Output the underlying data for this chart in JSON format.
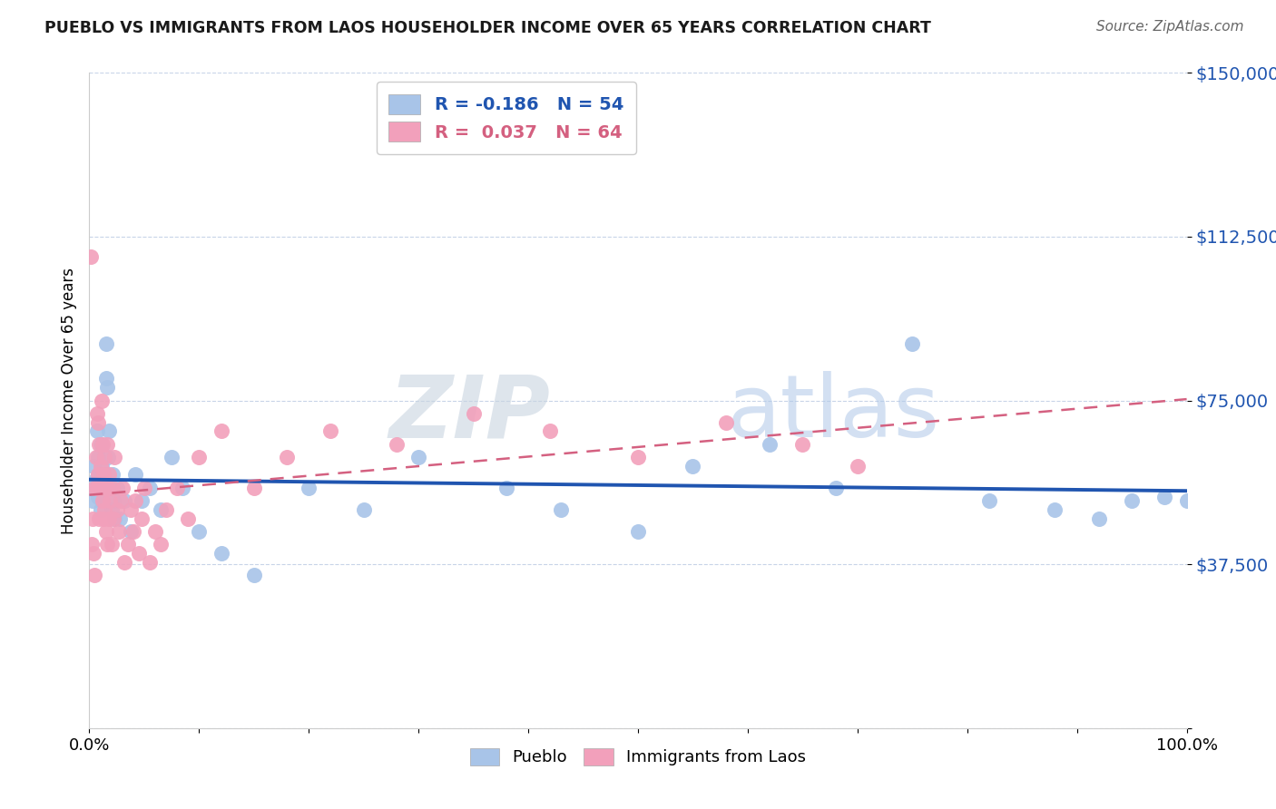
{
  "title": "PUEBLO VS IMMIGRANTS FROM LAOS HOUSEHOLDER INCOME OVER 65 YEARS CORRELATION CHART",
  "source": "Source: ZipAtlas.com",
  "ylabel": "Householder Income Over 65 years",
  "xmin": 0.0,
  "xmax": 1.0,
  "ymin": 0,
  "ymax": 150000,
  "pueblo_R": -0.186,
  "pueblo_N": 54,
  "laos_R": 0.037,
  "laos_N": 64,
  "pueblo_color": "#a8c4e8",
  "laos_color": "#f2a0bb",
  "pueblo_line_color": "#2055b0",
  "laos_line_color": "#d46080",
  "background_color": "#ffffff",
  "grid_color": "#c8d4e8",
  "watermark_zip": "ZIP",
  "watermark_atlas": "atlas",
  "pueblo_x": [
    0.003,
    0.004,
    0.005,
    0.006,
    0.007,
    0.008,
    0.008,
    0.009,
    0.01,
    0.01,
    0.011,
    0.011,
    0.012,
    0.013,
    0.014,
    0.015,
    0.015,
    0.016,
    0.017,
    0.018,
    0.019,
    0.02,
    0.021,
    0.022,
    0.023,
    0.025,
    0.028,
    0.032,
    0.038,
    0.042,
    0.048,
    0.055,
    0.065,
    0.075,
    0.085,
    0.1,
    0.12,
    0.15,
    0.2,
    0.25,
    0.3,
    0.38,
    0.43,
    0.5,
    0.55,
    0.62,
    0.68,
    0.75,
    0.82,
    0.88,
    0.92,
    0.95,
    0.98,
    1.0
  ],
  "pueblo_y": [
    52000,
    60000,
    55000,
    57000,
    68000,
    62000,
    53000,
    58000,
    50000,
    65000,
    55000,
    60000,
    52000,
    55000,
    58000,
    80000,
    88000,
    78000,
    62000,
    68000,
    55000,
    50000,
    58000,
    52000,
    48000,
    55000,
    48000,
    52000,
    45000,
    58000,
    52000,
    55000,
    50000,
    62000,
    55000,
    45000,
    40000,
    35000,
    55000,
    50000,
    62000,
    55000,
    50000,
    45000,
    60000,
    65000,
    55000,
    88000,
    52000,
    50000,
    48000,
    52000,
    53000,
    52000
  ],
  "laos_x": [
    0.001,
    0.002,
    0.003,
    0.004,
    0.005,
    0.005,
    0.006,
    0.007,
    0.007,
    0.008,
    0.008,
    0.009,
    0.009,
    0.01,
    0.01,
    0.011,
    0.012,
    0.012,
    0.013,
    0.013,
    0.014,
    0.014,
    0.015,
    0.015,
    0.016,
    0.016,
    0.017,
    0.018,
    0.018,
    0.019,
    0.02,
    0.021,
    0.022,
    0.023,
    0.025,
    0.027,
    0.029,
    0.03,
    0.032,
    0.035,
    0.038,
    0.04,
    0.042,
    0.045,
    0.048,
    0.05,
    0.055,
    0.06,
    0.065,
    0.07,
    0.08,
    0.09,
    0.1,
    0.12,
    0.15,
    0.18,
    0.22,
    0.28,
    0.35,
    0.42,
    0.5,
    0.58,
    0.65,
    0.7
  ],
  "laos_y": [
    108000,
    42000,
    48000,
    40000,
    55000,
    35000,
    62000,
    72000,
    55000,
    70000,
    58000,
    65000,
    48000,
    60000,
    55000,
    75000,
    52000,
    65000,
    48000,
    58000,
    62000,
    50000,
    55000,
    45000,
    65000,
    42000,
    55000,
    58000,
    48000,
    52000,
    42000,
    55000,
    48000,
    62000,
    50000,
    45000,
    52000,
    55000,
    38000,
    42000,
    50000,
    45000,
    52000,
    40000,
    48000,
    55000,
    38000,
    45000,
    42000,
    50000,
    55000,
    48000,
    62000,
    68000,
    55000,
    62000,
    68000,
    65000,
    72000,
    68000,
    62000,
    70000,
    65000,
    60000
  ]
}
